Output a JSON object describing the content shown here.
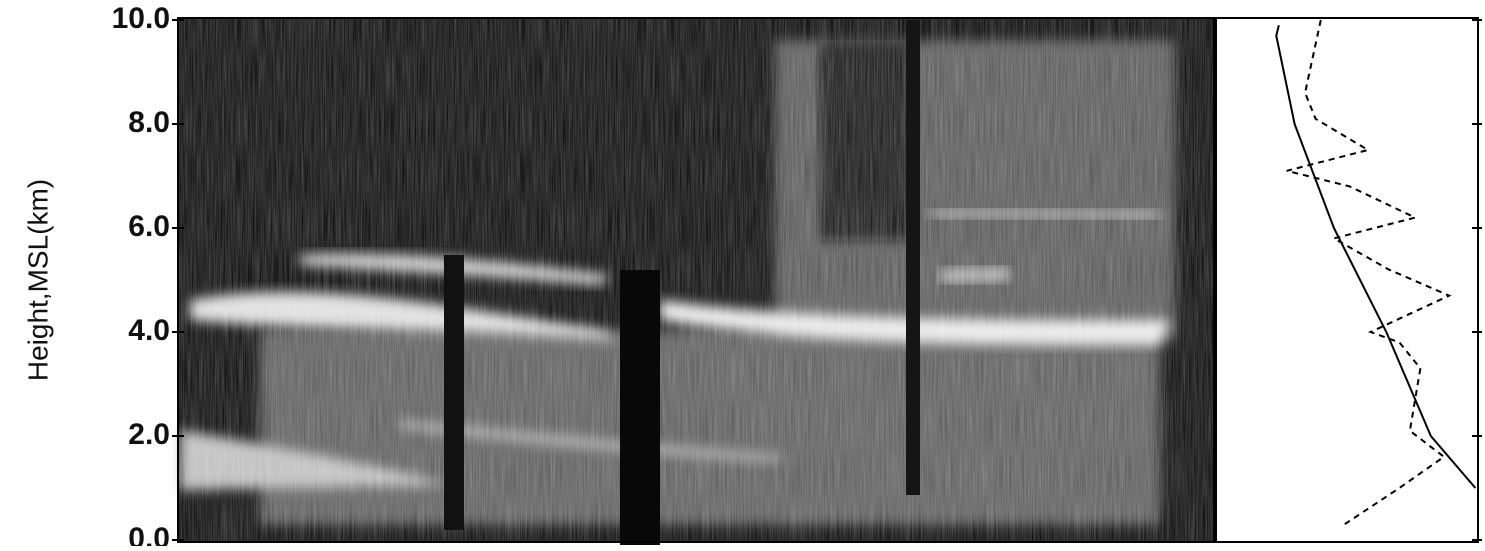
{
  "chart_data": {
    "type": "line",
    "ylabel": "Height,MSL(km)",
    "ylim": [
      0,
      10
    ],
    "yticks": [
      {
        "value": 0,
        "label": "0.0"
      },
      {
        "value": 2,
        "label": "2.0"
      },
      {
        "value": 4,
        "label": "4.0"
      },
      {
        "value": 6,
        "label": "6.0"
      },
      {
        "value": 8,
        "label": "8.0"
      },
      {
        "value": 10,
        "label": "10.0"
      }
    ],
    "xlim": [
      0,
      100
    ],
    "series": [
      {
        "color": "#000000",
        "dashed": false,
        "x": [
          24,
          23,
          30,
          45,
          65,
          82,
          99
        ],
        "values": [
          9.9,
          9.7,
          8.0,
          6.0,
          4.0,
          2.0,
          1.0
        ]
      },
      {
        "color": "#000000",
        "dashed": true,
        "x": [
          40,
          34,
          38,
          58,
          27,
          51,
          76,
          45,
          66,
          89,
          59,
          70,
          78,
          74,
          87,
          70,
          49
        ],
        "values": [
          10.0,
          8.6,
          8.1,
          7.5,
          7.1,
          6.8,
          6.2,
          5.8,
          5.2,
          4.7,
          4.0,
          3.8,
          3.3,
          2.1,
          1.6,
          1.0,
          0.3
        ]
      }
    ]
  }
}
